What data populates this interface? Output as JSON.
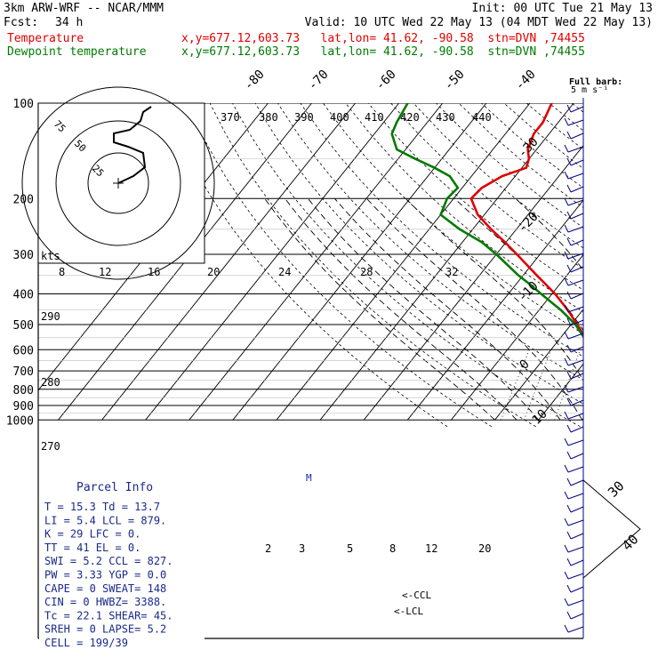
{
  "header": {
    "title": "3km ARW-WRF -- NCAR/MMM",
    "init": "Init: 00 UTC Tue 21 May 13",
    "fcst_label": "Fcst:",
    "fcst_value": "34 h",
    "valid": "Valid: 10 UTC Wed 22 May 13 (04 MDT Wed 22 May 13)",
    "temp_label": "Temperature",
    "temp_info": "x,y=677.12,603.73   lat,lon= 41.62, -90.58  stn=DVN ,74455",
    "dew_label": "Dewpoint temperature",
    "dew_info": "x,y=677.12,603.73   lat,lon= 41.62, -90.58  stn=DVN ,74455"
  },
  "colors": {
    "temperature": "#e00000",
    "dewpoint": "#007a00",
    "axes": "#000000"
  },
  "chart_data": {
    "type": "line",
    "pressure_ticks": [
      "100",
      "200",
      "300",
      "400",
      "500",
      "600",
      "700",
      "800",
      "900",
      "1000"
    ],
    "pressure_values": [
      100,
      200,
      300,
      400,
      500,
      600,
      700,
      800,
      900,
      1000
    ],
    "temperature_skew_labels": [
      "-80",
      "-70",
      "-60",
      "-50",
      "-40",
      "-30",
      "-20",
      "-10",
      "0",
      "10"
    ],
    "theta_labels": [
      "370",
      "380",
      "390",
      "400",
      "410",
      "420",
      "430",
      "440"
    ],
    "theta_side_labels": [
      "290",
      "280",
      "270"
    ],
    "mixing_ratio_labels": [
      "2",
      "3",
      "5",
      "8",
      "12",
      "20"
    ],
    "wind_label": "Full barb:",
    "wind_units": "5 m s⁻¹",
    "wind_speed_labels": [
      "30",
      "40"
    ],
    "series": [
      {
        "name": "Temperature",
        "color": "#e00000",
        "pressure": [
          1000,
          975,
          950,
          925,
          900,
          875,
          850,
          825,
          800,
          775,
          750,
          700,
          650,
          600,
          550,
          500,
          450,
          400,
          375,
          350,
          300,
          275,
          250,
          225,
          200,
          185,
          170,
          160,
          150,
          140,
          125,
          115,
          100
        ],
        "values": [
          22.1,
          20.8,
          19.3,
          18.0,
          16.5,
          15.1,
          13.7,
          12.5,
          11.0,
          10.0,
          8.8,
          6.2,
          3.0,
          -0.5,
          -4.3,
          -8.6,
          -13.4,
          -19.3,
          -22.9,
          -26.8,
          -35.3,
          -40.2,
          -45.8,
          -51.5,
          -56.0,
          -55.5,
          -53.0,
          -49.0,
          -50.0,
          -52.0,
          -53.5,
          -53.5,
          -55.0
        ]
      },
      {
        "name": "Dewpoint temperature",
        "color": "#007a00",
        "pressure": [
          1000,
          975,
          950,
          925,
          900,
          875,
          850,
          825,
          800,
          775,
          750,
          700,
          650,
          600,
          550,
          500,
          450,
          400,
          375,
          350,
          300,
          275,
          250,
          225,
          200,
          185,
          170,
          160,
          150,
          140,
          125,
          115,
          100
        ],
        "values": [
          16.0,
          14.5,
          13.8,
          13.7,
          13.2,
          12.0,
          10.3,
          10.8,
          10.9,
          9.8,
          8.6,
          6.0,
          2.6,
          -0.8,
          -4.6,
          -9.0,
          -15.0,
          -22.5,
          -26.5,
          -31.0,
          -40.0,
          -45.5,
          -53.0,
          -60.0,
          -61.5,
          -61.0,
          -65.0,
          -70.0,
          -76.0,
          -82.0,
          -86.0,
          -87.0,
          -88.0
        ]
      }
    ],
    "hodograph": {
      "units": "kts",
      "ring_labels": [
        "25",
        "50",
        "75"
      ],
      "speed_axis_labels": [
        "8",
        "12",
        "16",
        "20",
        "24",
        "28",
        "32"
      ]
    },
    "annotations": [
      "CCL",
      "LCL"
    ]
  },
  "parcel_info": {
    "title": "Parcel Info",
    "rows": [
      "T  =   15.3  Td =  13.7",
      "LI =    5.4  LCL =  879.",
      "K  =     29  LFC =     0.",
      "TT =     41  EL  =     0.",
      "SWI =   5.2  CCL =  827.",
      "PW =   3.33  YGP =   0.0",
      "CAPE =    0  SWEAT=  148",
      "CIN =     0  HWBZ= 3388.",
      "Tc =   22.1  SHEAR=  45.",
      "SREH =    0  LAPSE=  5.2",
      "CELL = 199/39"
    ]
  }
}
